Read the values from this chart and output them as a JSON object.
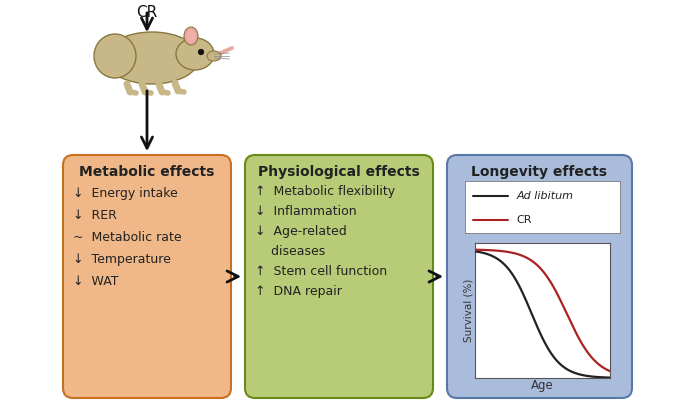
{
  "bg_color": "#ffffff",
  "box1": {
    "title": "Metabolic effects",
    "items": [
      "↓  Energy intake",
      "↓  RER",
      "~  Metabolic rate",
      "↓  Temperature",
      "↓  WAT"
    ],
    "bg_color": "#f0b888",
    "border_color": "#c87020",
    "title_color": "#222222",
    "text_color": "#222222"
  },
  "box2": {
    "title": "Physiological effects",
    "items2a": [
      "↑  Metabolic flexibility",
      "↓  Inflammation",
      "↓  Age-related"
    ],
    "items2b": [
      "   diseases",
      "↑  Stem cell function",
      "↑  DNA repair"
    ],
    "bg_color": "#b8cc78",
    "border_color": "#6a8818",
    "title_color": "#222222",
    "text_color": "#222222"
  },
  "box3": {
    "title": "Longevity effects",
    "bg_color": "#aabcdc",
    "border_color": "#5878a8",
    "title_color": "#222222",
    "text_color": "#222222",
    "line_al_color": "#222222",
    "line_cr_color": "#aa2222",
    "legend_al": "Ad libitum",
    "legend_cr": "CR",
    "xlabel": "Age",
    "ylabel": "Survival (%)"
  },
  "cr_label": "CR",
  "arrow_color": "#111111",
  "mouse_body_color": "#c8b888",
  "mouse_ear_color": "#e8a8a0",
  "mouse_body_border": "#8a7840",
  "mouse_tail_color": "#e8a8a0"
}
